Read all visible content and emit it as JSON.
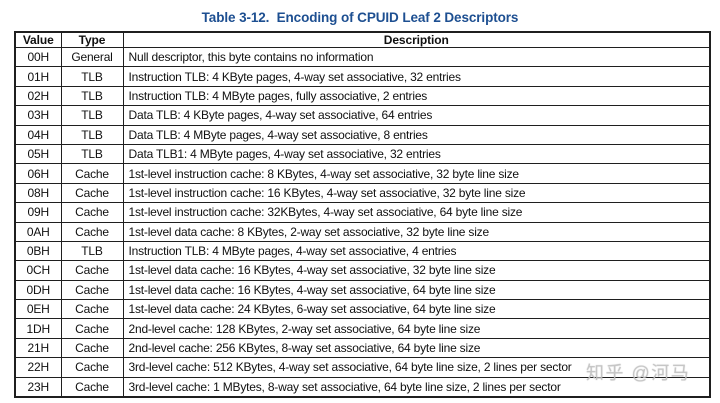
{
  "title": "Table 3-12.  Encoding of CPUID Leaf 2 Descriptors",
  "colors": {
    "title_blue": "#1d4f91",
    "table_border": "#1f1f1f",
    "text": "#101010",
    "watermark_gray": "#c4c4c4"
  },
  "table": {
    "columns": [
      "Value",
      "Type",
      "Description"
    ],
    "rows": [
      {
        "value": "00H",
        "type": "General",
        "description": "Null descriptor, this byte contains no information"
      },
      {
        "value": "01H",
        "type": "TLB",
        "description": "Instruction TLB: 4 KByte pages, 4-way set associative, 32 entries"
      },
      {
        "value": "02H",
        "type": "TLB",
        "description": "Instruction TLB: 4 MByte pages, fully associative, 2 entries"
      },
      {
        "value": "03H",
        "type": "TLB",
        "description": "Data TLB: 4 KByte pages, 4-way set associative, 64 entries"
      },
      {
        "value": "04H",
        "type": "TLB",
        "description": "Data TLB: 4 MByte pages, 4-way set associative, 8 entries"
      },
      {
        "value": "05H",
        "type": "TLB",
        "description": "Data TLB1: 4 MByte pages, 4-way set associative, 32 entries"
      },
      {
        "value": "06H",
        "type": "Cache",
        "description": "1st-level instruction cache: 8 KBytes, 4-way set associative, 32 byte line size"
      },
      {
        "value": "08H",
        "type": "Cache",
        "description": "1st-level instruction cache: 16 KBytes, 4-way set associative, 32 byte line size"
      },
      {
        "value": "09H",
        "type": "Cache",
        "description": "1st-level instruction cache: 32KBytes, 4-way set associative, 64 byte line size"
      },
      {
        "value": "0AH",
        "type": "Cache",
        "description": "1st-level data cache: 8 KBytes, 2-way set associative, 32 byte line size"
      },
      {
        "value": "0BH",
        "type": "TLB",
        "description": "Instruction TLB: 4 MByte pages, 4-way set associative, 4 entries"
      },
      {
        "value": "0CH",
        "type": "Cache",
        "description": "1st-level data cache: 16 KBytes, 4-way set associative, 32 byte line size"
      },
      {
        "value": "0DH",
        "type": "Cache",
        "description": "1st-level data cache: 16 KBytes, 4-way set associative, 64 byte line size"
      },
      {
        "value": "0EH",
        "type": "Cache",
        "description": "1st-level data cache: 24 KBytes, 6-way set associative, 64 byte line size"
      },
      {
        "value": "1DH",
        "type": "Cache",
        "description": "2nd-level cache: 128 KBytes, 2-way set associative, 64 byte line size"
      },
      {
        "value": "21H",
        "type": "Cache",
        "description": "2nd-level cache: 256 KBytes, 8-way set associative, 64 byte line size"
      },
      {
        "value": "22H",
        "type": "Cache",
        "description": "3rd-level cache: 512 KBytes, 4-way set associative, 64 byte line size, 2 lines per sector"
      },
      {
        "value": "23H",
        "type": "Cache",
        "description": "3rd-level cache: 1 MBytes, 8-way set associative, 64 byte line size, 2 lines per sector"
      }
    ]
  },
  "watermark": {
    "text": "知乎 @河马"
  }
}
